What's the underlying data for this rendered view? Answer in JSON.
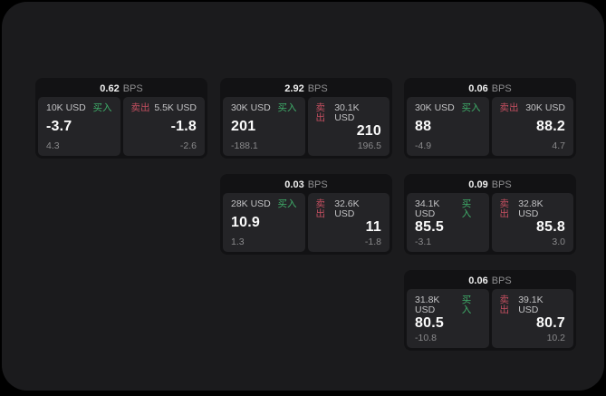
{
  "labels": {
    "buy_tag": "买入",
    "sell_tag": "卖出",
    "bps_unit": "BPS"
  },
  "colors": {
    "buy_green": "#3fae6a",
    "sell_red": "#c44f60",
    "surface": "#1b1b1d",
    "card_bg": "#121214",
    "panel_bg": "#242427"
  },
  "cards": [
    {
      "bps": "0.62",
      "buy": {
        "amount": "10K USD",
        "value": "-3.7",
        "sub": "4.3"
      },
      "sell": {
        "amount": "5.5K USD",
        "value": "-1.8",
        "sub": "-2.6"
      }
    },
    {
      "bps": "2.92",
      "buy": {
        "amount": "30K USD",
        "value": "201",
        "sub": "-188.1"
      },
      "sell": {
        "amount": "30.1K USD",
        "value": "210",
        "sub": "196.5"
      }
    },
    {
      "bps": "0.06",
      "buy": {
        "amount": "30K USD",
        "value": "88",
        "sub": "-4.9"
      },
      "sell": {
        "amount": "30K USD",
        "value": "88.2",
        "sub": "4.7"
      }
    },
    {
      "bps": "0.03",
      "buy": {
        "amount": "28K USD",
        "value": "10.9",
        "sub": "1.3"
      },
      "sell": {
        "amount": "32.6K USD",
        "value": "11",
        "sub": "-1.8"
      }
    },
    {
      "bps": "0.09",
      "buy": {
        "amount": "34.1K USD",
        "value": "85.5",
        "sub": "-3.1"
      },
      "sell": {
        "amount": "32.8K USD",
        "value": "85.8",
        "sub": "3.0"
      }
    },
    {
      "bps": "0.06",
      "buy": {
        "amount": "31.8K USD",
        "value": "80.5",
        "sub": "-10.8"
      },
      "sell": {
        "amount": "39.1K USD",
        "value": "80.7",
        "sub": "10.2"
      }
    }
  ]
}
